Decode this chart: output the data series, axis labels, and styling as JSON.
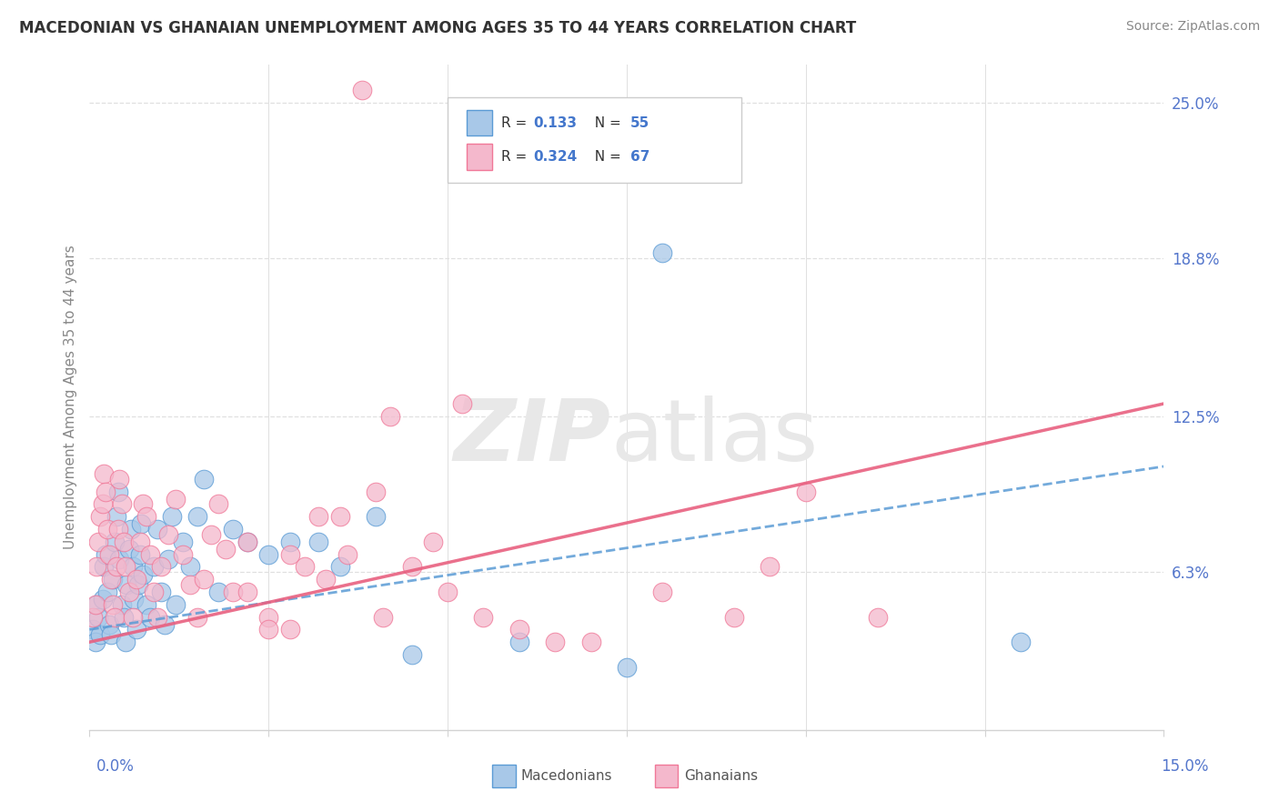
{
  "title": "MACEDONIAN VS GHANAIAN UNEMPLOYMENT AMONG AGES 35 TO 44 YEARS CORRELATION CHART",
  "source": "Source: ZipAtlas.com",
  "ylabel": "Unemployment Among Ages 35 to 44 years",
  "xlim": [
    0,
    15
  ],
  "ylim": [
    0,
    26.5
  ],
  "ytick_vals": [
    6.3,
    12.5,
    18.8,
    25.0
  ],
  "ytick_labels": [
    "6.3%",
    "12.5%",
    "18.8%",
    "25.0%"
  ],
  "macedonian_R": 0.133,
  "macedonian_N": 55,
  "ghanaian_R": 0.324,
  "ghanaian_N": 67,
  "macedonian_color": "#a8c8e8",
  "ghanaian_color": "#f4b8cc",
  "macedonian_edge_color": "#5b9bd5",
  "ghanaian_edge_color": "#f07898",
  "macedonian_line_color": "#5b9bd5",
  "ghanaian_line_color": "#e86080",
  "grid_color": "#e0e0e0",
  "tick_color": "#5577cc",
  "legend_label_color": "#333333",
  "legend_value_color": "#4477cc",
  "bottom_legend_color": "#555555",
  "mac_x": [
    0.05,
    0.08,
    0.1,
    0.12,
    0.15,
    0.18,
    0.2,
    0.22,
    0.25,
    0.28,
    0.3,
    0.32,
    0.35,
    0.38,
    0.4,
    0.42,
    0.45,
    0.48,
    0.5,
    0.52,
    0.55,
    0.58,
    0.6,
    0.62,
    0.65,
    0.68,
    0.7,
    0.72,
    0.75,
    0.8,
    0.85,
    0.9,
    0.95,
    1.0,
    1.05,
    1.1,
    1.15,
    1.2,
    1.3,
    1.4,
    1.5,
    1.6,
    1.8,
    2.0,
    2.2,
    2.5,
    2.8,
    3.2,
    3.5,
    4.0,
    4.5,
    6.0,
    7.5,
    8.0,
    13.0
  ],
  "mac_y": [
    4.0,
    3.5,
    5.0,
    4.5,
    3.8,
    5.2,
    6.5,
    7.0,
    5.5,
    4.2,
    3.8,
    6.0,
    7.5,
    8.5,
    9.5,
    6.8,
    5.0,
    4.5,
    3.5,
    5.8,
    7.2,
    8.0,
    6.5,
    5.2,
    4.0,
    5.8,
    7.0,
    8.2,
    6.2,
    5.0,
    4.5,
    6.5,
    8.0,
    5.5,
    4.2,
    6.8,
    8.5,
    5.0,
    7.5,
    6.5,
    8.5,
    10.0,
    5.5,
    8.0,
    7.5,
    7.0,
    7.5,
    7.5,
    6.5,
    8.5,
    3.0,
    3.5,
    2.5,
    19.0,
    3.5
  ],
  "gha_x": [
    0.05,
    0.08,
    0.1,
    0.12,
    0.15,
    0.18,
    0.2,
    0.22,
    0.25,
    0.28,
    0.3,
    0.32,
    0.35,
    0.38,
    0.4,
    0.42,
    0.45,
    0.48,
    0.5,
    0.55,
    0.6,
    0.65,
    0.7,
    0.75,
    0.8,
    0.85,
    0.9,
    0.95,
    1.0,
    1.1,
    1.2,
    1.3,
    1.4,
    1.5,
    1.6,
    1.7,
    1.8,
    1.9,
    2.0,
    2.2,
    2.5,
    2.8,
    3.0,
    3.2,
    3.5,
    4.0,
    4.5,
    5.0,
    5.5,
    6.0,
    7.0,
    8.0,
    9.0,
    9.5,
    10.0,
    11.0,
    3.8,
    4.2,
    3.6,
    4.8,
    5.2,
    6.5,
    2.5,
    2.2,
    2.8,
    3.3,
    4.1
  ],
  "gha_y": [
    4.5,
    5.0,
    6.5,
    7.5,
    8.5,
    9.0,
    10.2,
    9.5,
    8.0,
    7.0,
    6.0,
    5.0,
    4.5,
    6.5,
    8.0,
    10.0,
    9.0,
    7.5,
    6.5,
    5.5,
    4.5,
    6.0,
    7.5,
    9.0,
    8.5,
    7.0,
    5.5,
    4.5,
    6.5,
    7.8,
    9.2,
    7.0,
    5.8,
    4.5,
    6.0,
    7.8,
    9.0,
    7.2,
    5.5,
    5.5,
    4.5,
    4.0,
    6.5,
    8.5,
    8.5,
    9.5,
    6.5,
    5.5,
    4.5,
    4.0,
    3.5,
    5.5,
    4.5,
    6.5,
    9.5,
    4.5,
    25.5,
    12.5,
    7.0,
    7.5,
    13.0,
    3.5,
    4.0,
    7.5,
    7.0,
    6.0,
    4.5
  ],
  "mac_trend_x0": 0,
  "mac_trend_y0": 4.0,
  "mac_trend_x1": 15,
  "mac_trend_y1": 10.5,
  "gha_trend_x0": 0,
  "gha_trend_y0": 3.5,
  "gha_trend_x1": 15,
  "gha_trend_y1": 13.0
}
